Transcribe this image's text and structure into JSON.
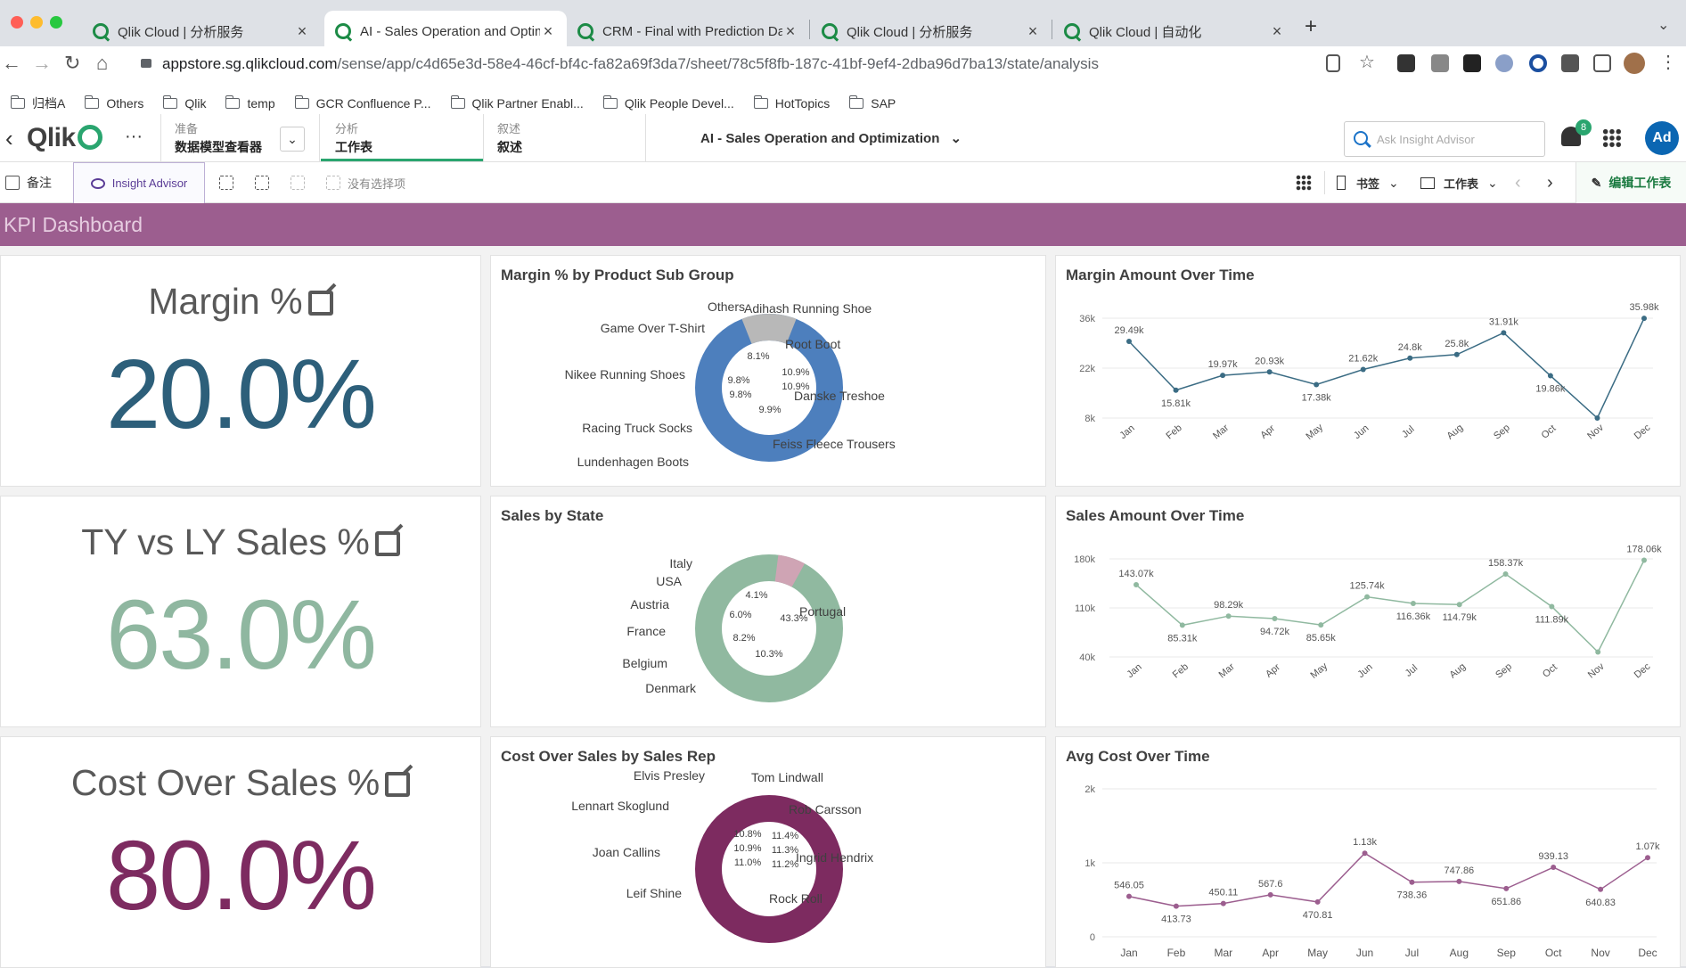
{
  "browser": {
    "tabs": [
      {
        "title": "Qlik Cloud | 分析服务",
        "active": false
      },
      {
        "title": "AI - Sales Operation and Optim",
        "active": true
      },
      {
        "title": "CRM - Final with Prediction Da",
        "active": false
      },
      {
        "title": "Qlik Cloud | 分析服务",
        "active": false
      },
      {
        "title": "Qlik Cloud | 自动化",
        "active": false
      }
    ],
    "url_domain": "appstore.sg.qlikcloud.com",
    "url_path": "/sense/app/c4d65e3d-58e4-46cf-bf4c-fa82a69f3da7/sheet/78c5f8fb-187c-41bf-9ef4-2dba96d7ba13/state/analysis",
    "bookmarks": [
      "归档A",
      "Others",
      "Qlik",
      "temp",
      "GCR Confluence P...",
      "Qlik Partner Enabl...",
      "Qlik People Devel...",
      "HotTopics",
      "SAP"
    ]
  },
  "app": {
    "logo": "Qlik",
    "more": "···",
    "nav": [
      {
        "key": "准备",
        "value": "数据模型查看器"
      },
      {
        "key": "分析",
        "value": "工作表"
      },
      {
        "key": "叙述",
        "value": "叙述"
      }
    ],
    "title": "AI - Sales Operation and Optimization",
    "search_placeholder": "Ask Insight Advisor",
    "notifications": "8",
    "avatar": "Ad"
  },
  "toolbar": {
    "notes": "备注",
    "insight_advisor": "Insight Advisor",
    "no_selection": "没有选择项",
    "bookmarks": "书签",
    "sheets": "工作表",
    "edit": "编辑工作表"
  },
  "sheet": {
    "title": "KPI Dashboard",
    "kpis": [
      {
        "title": "Margin %",
        "value": "20.0%",
        "color": "#2d5f7a"
      },
      {
        "title": "TY vs LY Sales %",
        "value": "63.0%",
        "color": "#8fb7a0"
      },
      {
        "title": "Cost Over Sales %",
        "value": "80.0%",
        "color": "#7d2b60"
      }
    ]
  },
  "chart_data": [
    {
      "type": "pie",
      "title": "Margin % by Product Sub Group",
      "color": "#4d7fbd",
      "categories": [
        "Others",
        "Adihash Running Shoe",
        "Root Boot",
        "Danske Treshoe",
        "Feiss Fleece Trousers",
        "Lundenhagen Boots",
        "Racing Truck  Socks",
        "Nikee Running Shoes",
        "Game Over T-Shirt"
      ],
      "slice_labels": [
        "8.1%",
        "10.9%",
        "10.9%",
        "9.9%",
        "9.8%",
        "9.8%"
      ]
    },
    {
      "type": "line",
      "title": "Margin Amount Over Time",
      "color": "#3b6c84",
      "x": [
        "Jan",
        "Feb",
        "Mar",
        "Apr",
        "May",
        "Jun",
        "Jul",
        "Aug",
        "Sep",
        "Oct",
        "Nov",
        "Dec"
      ],
      "values": [
        29490,
        15810,
        19970,
        20930,
        17380,
        21620,
        24800,
        25800,
        31910,
        19860,
        8000,
        35980
      ],
      "labels": [
        "29.49k",
        "15.81k",
        "19.97k",
        "20.93k",
        "17.38k",
        "21.62k",
        "24.8k",
        "25.8k",
        "31.91k",
        "19.86k",
        "",
        "35.98k"
      ],
      "yticks": [
        "36k",
        "22k",
        "8k"
      ],
      "ylim": [
        8000,
        36000
      ],
      "xlabel_rotated": true
    },
    {
      "type": "pie",
      "title": "Sales by State",
      "color": "#90b9a0",
      "categories": [
        "Italy",
        "USA",
        "Austria",
        "France",
        "Belgium",
        "Denmark",
        "Portugal"
      ],
      "slice_labels": [
        "4.1%",
        "43.3%",
        "6.0%",
        "8.2%",
        "10.3%"
      ]
    },
    {
      "type": "line",
      "title": "Sales Amount Over Time",
      "color": "#90b9a0",
      "x": [
        "Jan",
        "Feb",
        "Mar",
        "Apr",
        "May",
        "Jun",
        "Jul",
        "Aug",
        "Sep",
        "Oct",
        "Nov",
        "Dec"
      ],
      "values": [
        143070,
        85310,
        98290,
        94720,
        85650,
        125740,
        116360,
        114790,
        158370,
        111890,
        47000,
        178060
      ],
      "labels": [
        "143.07k",
        "85.31k",
        "98.29k",
        "94.72k",
        "85.65k",
        "125.74k",
        "116.36k",
        "114.79k",
        "158.37k",
        "111.89k",
        "",
        "178.06k"
      ],
      "yticks": [
        "180k",
        "110k",
        "40k"
      ],
      "ylim": [
        40000,
        180000
      ],
      "xlabel_rotated": true
    },
    {
      "type": "pie",
      "title": "Cost Over Sales by Sales Rep",
      "color": "#7d2b60",
      "categories": [
        "Elvis Presley",
        "Tom Lindwall",
        "Rob Carsson",
        "Ingrid Hendrix",
        "Rock Roll",
        "Leif Shine",
        "Joan Callins",
        "Lennart Skoglund"
      ],
      "slice_labels": [
        "10.8%",
        "11.4%",
        "10.9%",
        "11.3%",
        "11.0%",
        "11.2%"
      ]
    },
    {
      "type": "line",
      "title": "Avg Cost Over Time",
      "color": "#9c5e8f",
      "x": [
        "Jan",
        "Feb",
        "Mar",
        "Apr",
        "May",
        "Jun",
        "Jul",
        "Aug",
        "Sep",
        "Oct",
        "Nov",
        "Dec"
      ],
      "values": [
        546.05,
        413.73,
        450.11,
        567.6,
        470.81,
        1130,
        738.36,
        747.86,
        651.86,
        939.13,
        640.83,
        1070
      ],
      "labels": [
        "546.05",
        "413.73",
        "450.11",
        "567.6",
        "470.81",
        "1.13k",
        "738.36",
        "747.86",
        "651.86",
        "939.13",
        "640.83",
        "1.07k"
      ],
      "yticks": [
        "2k",
        "1k",
        "0"
      ],
      "ylim": [
        0,
        2000
      ],
      "xlabel_rotated": false
    }
  ]
}
